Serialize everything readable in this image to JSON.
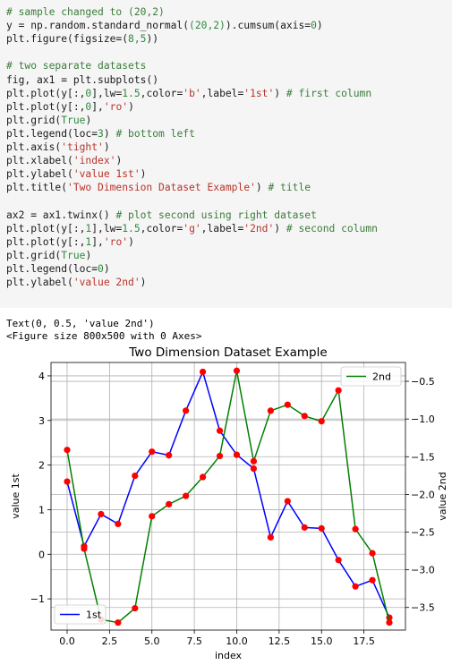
{
  "code_lines": [
    [
      {
        "t": "# sample changed to (20,2)",
        "c": "c-com"
      }
    ],
    [
      {
        "t": "y = np.random.standard_normal(",
        "c": ""
      },
      {
        "t": "(20,2)",
        "c": "c-num"
      },
      {
        "t": ").cumsum(axis=",
        "c": ""
      },
      {
        "t": "0",
        "c": "c-num"
      },
      {
        "t": ")",
        "c": ""
      }
    ],
    [
      {
        "t": "plt.figure(figsize=(",
        "c": ""
      },
      {
        "t": "8,5",
        "c": "c-num"
      },
      {
        "t": "))",
        "c": ""
      }
    ],
    [
      {
        "t": "",
        "c": ""
      }
    ],
    [
      {
        "t": "# two separate datasets",
        "c": "c-com"
      }
    ],
    [
      {
        "t": "fig, ax1 = plt.subplots()",
        "c": ""
      }
    ],
    [
      {
        "t": "plt.plot(y[:,",
        "c": ""
      },
      {
        "t": "0",
        "c": "c-num"
      },
      {
        "t": "],lw=",
        "c": ""
      },
      {
        "t": "1.5",
        "c": "c-num"
      },
      {
        "t": ",color=",
        "c": ""
      },
      {
        "t": "'b'",
        "c": "c-str"
      },
      {
        "t": ",label=",
        "c": ""
      },
      {
        "t": "'1st'",
        "c": "c-str"
      },
      {
        "t": ") ",
        "c": ""
      },
      {
        "t": "# first column",
        "c": "c-com"
      }
    ],
    [
      {
        "t": "plt.plot(y[:,",
        "c": ""
      },
      {
        "t": "0",
        "c": "c-num"
      },
      {
        "t": "],",
        "c": ""
      },
      {
        "t": "'ro'",
        "c": "c-str"
      },
      {
        "t": ")",
        "c": ""
      }
    ],
    [
      {
        "t": "plt.grid(",
        "c": ""
      },
      {
        "t": "True",
        "c": "c-num"
      },
      {
        "t": ")",
        "c": ""
      }
    ],
    [
      {
        "t": "plt.legend(loc=",
        "c": ""
      },
      {
        "t": "3",
        "c": "c-num"
      },
      {
        "t": ") ",
        "c": ""
      },
      {
        "t": "# bottom left",
        "c": "c-com"
      }
    ],
    [
      {
        "t": "plt.axis(",
        "c": ""
      },
      {
        "t": "'tight'",
        "c": "c-str"
      },
      {
        "t": ")",
        "c": ""
      }
    ],
    [
      {
        "t": "plt.xlabel(",
        "c": ""
      },
      {
        "t": "'index'",
        "c": "c-str"
      },
      {
        "t": ")",
        "c": ""
      }
    ],
    [
      {
        "t": "plt.ylabel(",
        "c": ""
      },
      {
        "t": "'value 1st'",
        "c": "c-str"
      },
      {
        "t": ")",
        "c": ""
      }
    ],
    [
      {
        "t": "plt.title(",
        "c": ""
      },
      {
        "t": "'Two Dimension Dataset Example'",
        "c": "c-str"
      },
      {
        "t": ") ",
        "c": ""
      },
      {
        "t": "# title",
        "c": "c-com"
      }
    ],
    [
      {
        "t": "",
        "c": ""
      }
    ],
    [
      {
        "t": "ax2 = ax1.twinx() ",
        "c": ""
      },
      {
        "t": "# plot second using right dataset",
        "c": "c-com"
      }
    ],
    [
      {
        "t": "plt.plot(y[:,",
        "c": ""
      },
      {
        "t": "1",
        "c": "c-num"
      },
      {
        "t": "],lw=",
        "c": ""
      },
      {
        "t": "1.5",
        "c": "c-num"
      },
      {
        "t": ",color=",
        "c": ""
      },
      {
        "t": "'g'",
        "c": "c-str"
      },
      {
        "t": ",label=",
        "c": ""
      },
      {
        "t": "'2nd'",
        "c": "c-str"
      },
      {
        "t": ") ",
        "c": ""
      },
      {
        "t": "# second column",
        "c": "c-com"
      }
    ],
    [
      {
        "t": "plt.plot(y[:,",
        "c": ""
      },
      {
        "t": "1",
        "c": "c-num"
      },
      {
        "t": "],",
        "c": ""
      },
      {
        "t": "'ro'",
        "c": "c-str"
      },
      {
        "t": ")",
        "c": ""
      }
    ],
    [
      {
        "t": "plt.grid(",
        "c": ""
      },
      {
        "t": "True",
        "c": "c-num"
      },
      {
        "t": ")",
        "c": ""
      }
    ],
    [
      {
        "t": "plt.legend(loc=",
        "c": ""
      },
      {
        "t": "0",
        "c": "c-num"
      },
      {
        "t": ")",
        "c": ""
      }
    ],
    [
      {
        "t": "plt.ylabel(",
        "c": ""
      },
      {
        "t": "'value 2nd'",
        "c": "c-str"
      },
      {
        "t": ")",
        "c": ""
      }
    ]
  ],
  "output_lines": [
    "Text(0, 0.5, 'value 2nd')",
    "<Figure size 800x500 with 0 Axes>"
  ],
  "chart_data": {
    "type": "line",
    "title": "Two Dimension Dataset Example",
    "xlabel": "index",
    "ylabel_left": "value 1st",
    "ylabel_right": "value 2nd",
    "x": [
      0,
      1,
      2,
      3,
      4,
      5,
      6,
      7,
      8,
      9,
      10,
      11,
      12,
      13,
      14,
      15,
      16,
      17,
      18,
      19
    ],
    "xlim": [
      -0.95,
      19.95
    ],
    "xticks": [
      "0.0",
      "2.5",
      "5.0",
      "7.5",
      "10.0",
      "12.5",
      "15.0",
      "17.5"
    ],
    "xtick_values": [
      0,
      2.5,
      5,
      7.5,
      10,
      12.5,
      15,
      17.5
    ],
    "ylim_left": [
      -1.7,
      4.3
    ],
    "yticks_left": [
      -1,
      0,
      1,
      2,
      3,
      4
    ],
    "ylim_right": [
      -3.8,
      -0.25
    ],
    "yticks_right": [
      -3.5,
      -3.0,
      -2.5,
      -2.0,
      -1.5,
      -1.0,
      -0.5
    ],
    "ytick_labels_right": [
      "−3.5",
      "−3.0",
      "−2.5",
      "−2.0",
      "−1.5",
      "−1.0",
      "−0.5"
    ],
    "ytick_labels_left": [
      "−1",
      "0",
      "1",
      "2",
      "3",
      "4"
    ],
    "grid": true,
    "series": [
      {
        "name": "1st",
        "axis": "left",
        "color": "#0000ff",
        "marker_color": "#ff0000",
        "legend": "bottom-left",
        "values": [
          1.63,
          0.18,
          0.9,
          0.68,
          1.76,
          2.3,
          2.22,
          3.22,
          4.09,
          2.77,
          2.23,
          1.92,
          0.38,
          1.19,
          0.6,
          0.58,
          -0.13,
          -0.72,
          -0.58,
          -1.42
        ]
      },
      {
        "name": "2nd",
        "axis": "right",
        "color": "#008000",
        "marker_color": "#ff0000",
        "legend": "top-right",
        "values": [
          -1.41,
          -2.72,
          -3.66,
          -3.7,
          -3.51,
          -2.29,
          -2.13,
          -2.02,
          -1.77,
          -1.49,
          -0.36,
          -1.56,
          -0.89,
          -0.81,
          -0.96,
          -1.03,
          -0.62,
          -2.46,
          -2.78,
          -3.7
        ]
      }
    ]
  }
}
